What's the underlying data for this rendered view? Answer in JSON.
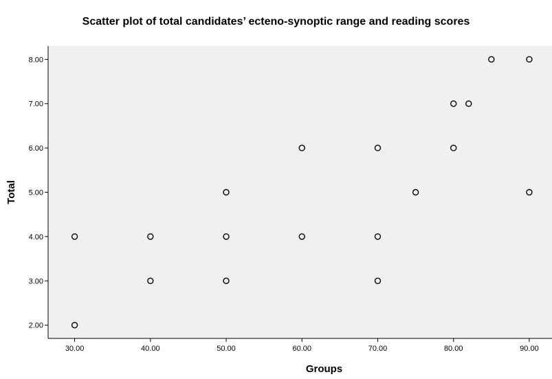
{
  "chart_data": {
    "type": "scatter",
    "title": "Scatter plot of total candidates’ ecteno-synoptic range and reading scores",
    "xlabel": "Groups",
    "ylabel": "Total",
    "xlim": [
      26.5,
      93
    ],
    "ylim": [
      1.7,
      8.3
    ],
    "xticks": [
      "30.00",
      "40.00",
      "50.00",
      "60.00",
      "70.00",
      "80.00",
      "90.00"
    ],
    "xtick_values": [
      30,
      40,
      50,
      60,
      70,
      80,
      90
    ],
    "yticks": [
      "2.00",
      "3.00",
      "4.00",
      "5.00",
      "6.00",
      "7.00",
      "8.00"
    ],
    "ytick_values": [
      2,
      3,
      4,
      5,
      6,
      7,
      8
    ],
    "grid": false,
    "legend": "none",
    "points": [
      {
        "x": 30,
        "y": 2
      },
      {
        "x": 30,
        "y": 4
      },
      {
        "x": 40,
        "y": 3
      },
      {
        "x": 40,
        "y": 4
      },
      {
        "x": 50,
        "y": 3
      },
      {
        "x": 50,
        "y": 4
      },
      {
        "x": 50,
        "y": 5
      },
      {
        "x": 60,
        "y": 4
      },
      {
        "x": 60,
        "y": 6
      },
      {
        "x": 70,
        "y": 3
      },
      {
        "x": 70,
        "y": 4
      },
      {
        "x": 70,
        "y": 6
      },
      {
        "x": 75,
        "y": 5
      },
      {
        "x": 80,
        "y": 6
      },
      {
        "x": 80,
        "y": 7
      },
      {
        "x": 82,
        "y": 7
      },
      {
        "x": 85,
        "y": 8
      },
      {
        "x": 90,
        "y": 5
      },
      {
        "x": 90,
        "y": 8
      }
    ],
    "colors": {
      "plot_background": "#f0f0f0",
      "marker_stroke": "#000000",
      "axis": "#000000"
    }
  }
}
